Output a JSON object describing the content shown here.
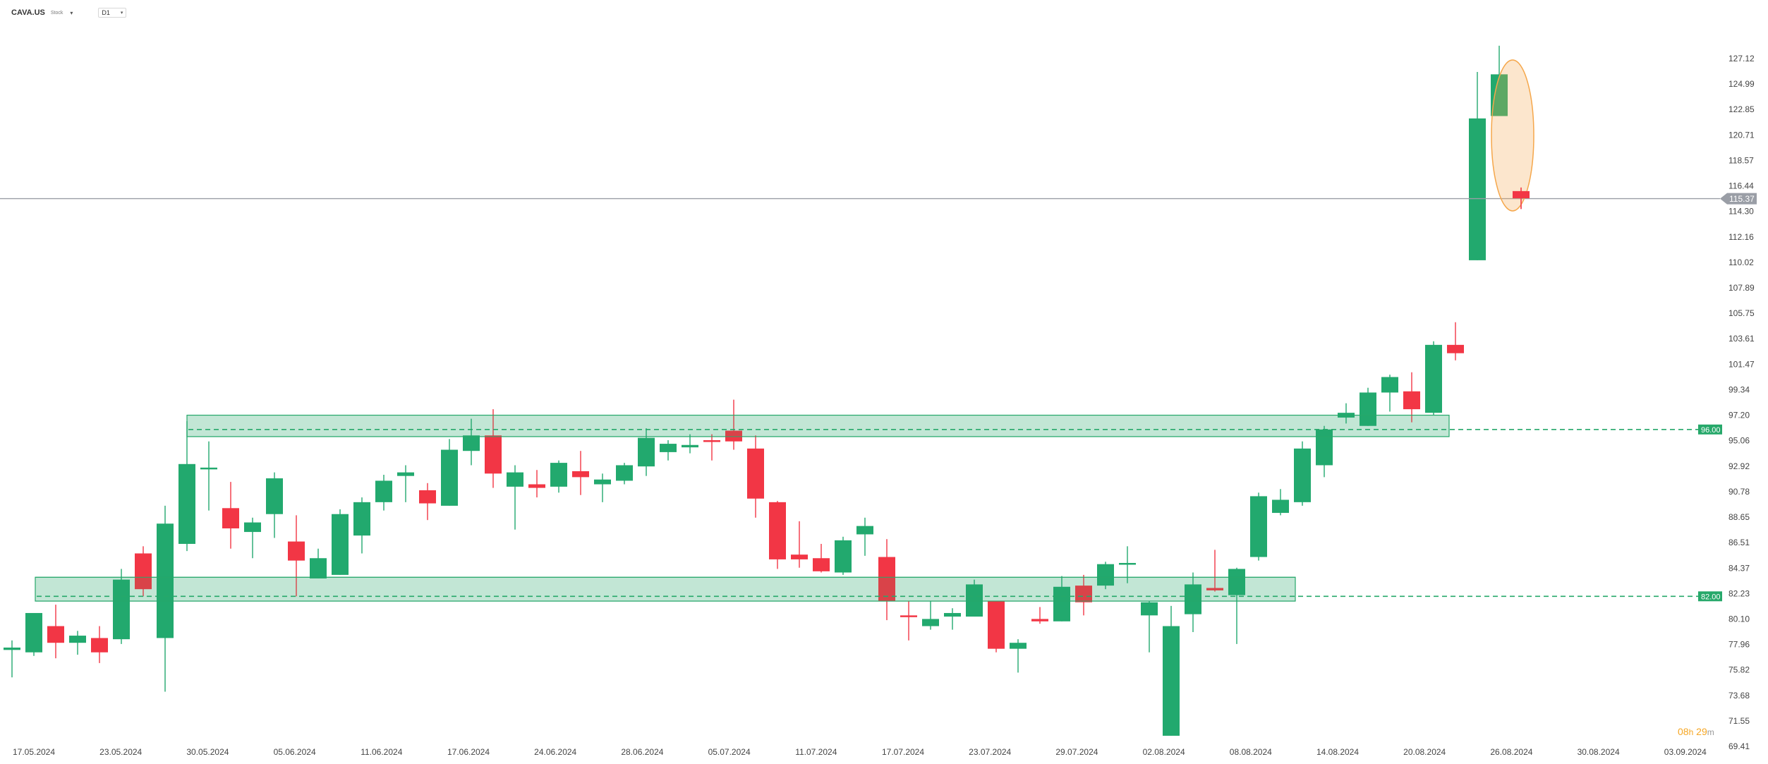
{
  "header": {
    "symbol": "CAVA.US",
    "asset_type": "Stock",
    "timeframe": "D1"
  },
  "countdown": {
    "hours": "08",
    "hours_unit": "h",
    "minutes": "29",
    "minutes_unit": "m"
  },
  "colors": {
    "up": "#22a96e",
    "down": "#f23645",
    "support_zone": "#26a86a",
    "current_price": "#9a9ea6",
    "highlight_ellipse": "#f5a74b",
    "countdown": "#f5a623",
    "axis_text": "#444444"
  },
  "chart_data": {
    "type": "candlestick",
    "ylim": [
      69.41,
      128.9
    ],
    "y_ticks": [
      "127.12",
      "124.99",
      "122.85",
      "120.71",
      "118.57",
      "116.44",
      "114.30",
      "112.16",
      "110.02",
      "107.89",
      "105.75",
      "103.61",
      "101.47",
      "99.34",
      "97.20",
      "95.06",
      "92.92",
      "90.78",
      "88.65",
      "86.51",
      "84.37",
      "82.23",
      "80.10",
      "77.96",
      "75.82",
      "73.68",
      "71.55",
      "69.41"
    ],
    "x_ticks": [
      "17.05.2024",
      "23.05.2024",
      "30.05.2024",
      "05.06.2024",
      "11.06.2024",
      "17.06.2024",
      "24.06.2024",
      "28.06.2024",
      "05.07.2024",
      "11.07.2024",
      "17.07.2024",
      "23.07.2024",
      "29.07.2024",
      "02.08.2024",
      "08.08.2024",
      "14.08.2024",
      "20.08.2024",
      "26.08.2024",
      "30.08.2024",
      "03.09.2024"
    ],
    "candles": [
      {
        "o": 77.5,
        "h": 78.3,
        "l": 75.2,
        "c": 77.7
      },
      {
        "o": 77.3,
        "h": 80.5,
        "l": 77.0,
        "c": 80.6
      },
      {
        "o": 79.5,
        "h": 81.3,
        "l": 76.8,
        "c": 78.1
      },
      {
        "o": 78.1,
        "h": 79.1,
        "l": 77.1,
        "c": 78.7
      },
      {
        "o": 78.5,
        "h": 79.5,
        "l": 76.4,
        "c": 77.3
      },
      {
        "o": 78.4,
        "h": 84.3,
        "l": 78.0,
        "c": 83.4
      },
      {
        "o": 85.6,
        "h": 86.2,
        "l": 82.0,
        "c": 82.6
      },
      {
        "o": 78.5,
        "h": 89.6,
        "l": 74.0,
        "c": 88.1
      },
      {
        "o": 86.4,
        "h": 96.7,
        "l": 85.8,
        "c": 93.1
      },
      {
        "o": 92.7,
        "h": 95.0,
        "l": 89.2,
        "c": 92.8
      },
      {
        "o": 89.4,
        "h": 91.6,
        "l": 86.0,
        "c": 87.7
      },
      {
        "o": 87.4,
        "h": 88.6,
        "l": 85.2,
        "c": 88.2
      },
      {
        "o": 88.9,
        "h": 92.4,
        "l": 86.9,
        "c": 91.9
      },
      {
        "o": 86.6,
        "h": 88.8,
        "l": 82.0,
        "c": 85.0
      },
      {
        "o": 83.5,
        "h": 86.0,
        "l": 83.5,
        "c": 85.2
      },
      {
        "o": 83.8,
        "h": 89.3,
        "l": 83.8,
        "c": 88.9
      },
      {
        "o": 87.1,
        "h": 90.3,
        "l": 85.6,
        "c": 89.9
      },
      {
        "o": 89.9,
        "h": 92.2,
        "l": 89.2,
        "c": 91.7
      },
      {
        "o": 92.1,
        "h": 93.0,
        "l": 89.9,
        "c": 92.4
      },
      {
        "o": 90.9,
        "h": 91.5,
        "l": 88.4,
        "c": 89.8
      },
      {
        "o": 89.6,
        "h": 95.2,
        "l": 89.6,
        "c": 94.3
      },
      {
        "o": 94.2,
        "h": 96.9,
        "l": 93.0,
        "c": 95.5
      },
      {
        "o": 95.5,
        "h": 97.7,
        "l": 91.1,
        "c": 92.3
      },
      {
        "o": 91.2,
        "h": 93.0,
        "l": 87.6,
        "c": 92.4
      },
      {
        "o": 91.4,
        "h": 92.6,
        "l": 90.3,
        "c": 91.1
      },
      {
        "o": 91.2,
        "h": 93.4,
        "l": 90.7,
        "c": 93.2
      },
      {
        "o": 92.5,
        "h": 94.2,
        "l": 90.5,
        "c": 92.0
      },
      {
        "o": 91.4,
        "h": 92.3,
        "l": 89.9,
        "c": 91.8
      },
      {
        "o": 91.7,
        "h": 93.2,
        "l": 91.4,
        "c": 93.0
      },
      {
        "o": 92.9,
        "h": 96.1,
        "l": 92.1,
        "c": 95.3
      },
      {
        "o": 94.1,
        "h": 95.1,
        "l": 93.4,
        "c": 94.8
      },
      {
        "o": 94.5,
        "h": 95.6,
        "l": 94.0,
        "c": 94.7
      },
      {
        "o": 95.1,
        "h": 95.6,
        "l": 93.4,
        "c": 95.0
      },
      {
        "o": 95.9,
        "h": 98.5,
        "l": 94.3,
        "c": 95.0
      },
      {
        "o": 94.4,
        "h": 95.5,
        "l": 88.6,
        "c": 90.2
      },
      {
        "o": 89.9,
        "h": 90.0,
        "l": 84.3,
        "c": 85.1
      },
      {
        "o": 85.5,
        "h": 88.3,
        "l": 84.4,
        "c": 85.1
      },
      {
        "o": 85.2,
        "h": 86.4,
        "l": 84.0,
        "c": 84.1
      },
      {
        "o": 84.0,
        "h": 87.0,
        "l": 83.8,
        "c": 86.7
      },
      {
        "o": 87.2,
        "h": 88.6,
        "l": 85.4,
        "c": 87.9
      },
      {
        "o": 85.3,
        "h": 86.8,
        "l": 80.0,
        "c": 81.6
      },
      {
        "o": 80.4,
        "h": 81.6,
        "l": 78.3,
        "c": 80.3
      },
      {
        "o": 79.5,
        "h": 81.6,
        "l": 79.2,
        "c": 80.1
      },
      {
        "o": 80.3,
        "h": 81.0,
        "l": 79.2,
        "c": 80.6
      },
      {
        "o": 80.3,
        "h": 83.4,
        "l": 80.3,
        "c": 83.0
      },
      {
        "o": 81.6,
        "h": 81.6,
        "l": 77.3,
        "c": 77.6
      },
      {
        "o": 77.6,
        "h": 78.4,
        "l": 75.6,
        "c": 78.1
      },
      {
        "o": 80.1,
        "h": 81.1,
        "l": 79.7,
        "c": 79.9
      },
      {
        "o": 79.9,
        "h": 83.7,
        "l": 79.9,
        "c": 82.8
      },
      {
        "o": 82.9,
        "h": 83.8,
        "l": 80.4,
        "c": 81.5
      },
      {
        "o": 82.9,
        "h": 84.9,
        "l": 82.6,
        "c": 84.7
      },
      {
        "o": 84.7,
        "h": 86.2,
        "l": 83.1,
        "c": 84.8
      },
      {
        "o": 80.4,
        "h": 81.6,
        "l": 77.3,
        "c": 81.5
      },
      {
        "o": 70.3,
        "h": 81.2,
        "l": 70.3,
        "c": 79.5
      },
      {
        "o": 80.5,
        "h": 84.0,
        "l": 79.0,
        "c": 83.0
      },
      {
        "o": 82.7,
        "h": 85.9,
        "l": 82.4,
        "c": 82.5
      },
      {
        "o": 82.1,
        "h": 84.4,
        "l": 78.0,
        "c": 84.3
      },
      {
        "o": 85.3,
        "h": 90.7,
        "l": 85.0,
        "c": 90.4
      },
      {
        "o": 89.0,
        "h": 91.0,
        "l": 88.8,
        "c": 90.1
      },
      {
        "o": 89.9,
        "h": 95.0,
        "l": 89.6,
        "c": 94.4
      },
      {
        "o": 93.0,
        "h": 96.3,
        "l": 92.0,
        "c": 96.0
      },
      {
        "o": 97.0,
        "h": 98.2,
        "l": 96.5,
        "c": 97.4
      },
      {
        "o": 96.3,
        "h": 99.5,
        "l": 96.3,
        "c": 99.1
      },
      {
        "o": 99.1,
        "h": 100.6,
        "l": 97.5,
        "c": 100.4
      },
      {
        "o": 99.2,
        "h": 100.8,
        "l": 96.6,
        "c": 97.7
      },
      {
        "o": 97.4,
        "h": 103.4,
        "l": 97.2,
        "c": 103.1
      },
      {
        "o": 103.1,
        "h": 105.0,
        "l": 101.8,
        "c": 102.4
      },
      {
        "o": 110.2,
        "h": 126.0,
        "l": 110.2,
        "c": 122.1
      },
      {
        "o": 122.3,
        "h": 128.2,
        "l": 122.3,
        "c": 125.8
      },
      {
        "o": 116.0,
        "h": 116.3,
        "l": 114.5,
        "c": 115.4
      }
    ],
    "current_price": 115.37,
    "current_price_label": "115.37",
    "levels": [
      {
        "value": 96.0,
        "label": "96.00"
      },
      {
        "value": 82.0,
        "label": "82.00"
      }
    ]
  }
}
